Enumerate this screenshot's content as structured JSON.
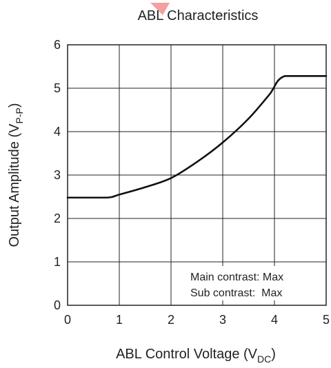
{
  "chart_data": {
    "type": "line",
    "title": "ABL Characteristics",
    "xlabel": {
      "main": "ABL Control Voltage (V",
      "subscript": "DC",
      "suffix": ")"
    },
    "ylabel": {
      "main": "Output Amplitude (V",
      "subscript": "P-P",
      "suffix": ")"
    },
    "xlim": [
      0,
      5
    ],
    "ylim": [
      0,
      6
    ],
    "x_ticks": [
      "0",
      "1",
      "2",
      "3",
      "4",
      "5"
    ],
    "y_ticks": [
      "0",
      "1",
      "2",
      "3",
      "4",
      "5",
      "6"
    ],
    "grid": true,
    "series": [
      {
        "x": [
          0,
          0.75,
          1.0,
          1.5,
          2.0,
          2.5,
          3.0,
          3.5,
          3.9,
          4.2,
          5.0
        ],
        "values": [
          2.48,
          2.48,
          2.55,
          2.72,
          2.93,
          3.3,
          3.75,
          4.3,
          4.85,
          5.28,
          5.28
        ]
      }
    ],
    "annotations": [
      "Main contrast: Max",
      "Sub contrast:  Max"
    ],
    "annotation_position": "bottom-right"
  }
}
